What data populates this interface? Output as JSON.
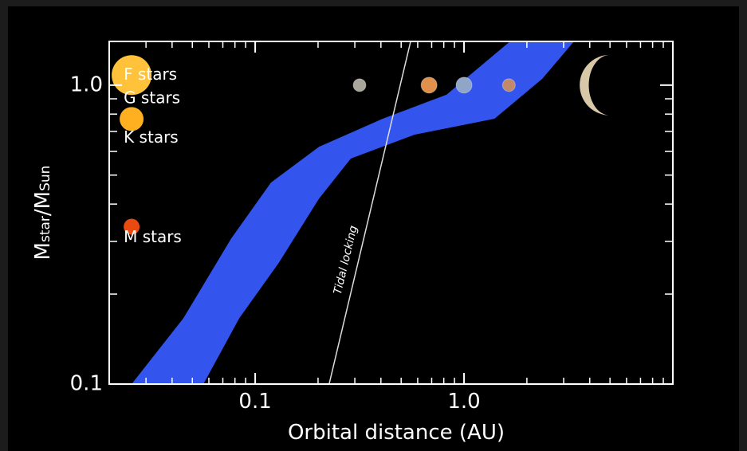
{
  "chart_data": {
    "type": "habitable-zone",
    "xlabel": "Orbital distance (AU)",
    "ylabel": [
      "M",
      "star",
      "/M",
      "Sun"
    ],
    "log_x": true,
    "log_y": true,
    "xlim": [
      0.02,
      10
    ],
    "ylim": [
      0.1,
      1.4
    ],
    "xticks": [
      0.1,
      {
        "value": 1,
        "label": "1.0"
      }
    ],
    "yticks": [
      0.1,
      {
        "value": 1,
        "label": "1.0"
      }
    ],
    "xminorticks": [
      0.03,
      0.04,
      0.05,
      0.06,
      0.07,
      0.08,
      0.09,
      0.2,
      0.3,
      0.4,
      0.5,
      0.6,
      0.7,
      0.8,
      0.9,
      2,
      3,
      4,
      5,
      6,
      7,
      8,
      9
    ],
    "yminorticks": [
      0.2,
      0.3,
      0.4,
      0.5,
      0.6,
      0.7,
      0.8,
      0.9
    ],
    "band": {
      "color": "#3355ee",
      "x_inner": [
        0.0256,
        0.0453,
        0.0768,
        0.119,
        0.202,
        0.408,
        0.824,
        1.66
      ],
      "y_inner": [
        0.1,
        0.166,
        0.307,
        0.472,
        0.622,
        0.772,
        0.929,
        1.4
      ],
      "x_outer": [
        0.0565,
        0.0839,
        0.13,
        0.202,
        0.287,
        0.58,
        1.4,
        2.37,
        3.36
      ],
      "y_outer": [
        0.1,
        0.166,
        0.255,
        0.417,
        0.568,
        0.683,
        0.772,
        1.05,
        1.4
      ]
    },
    "tidal_locking": {
      "label": "Tidal locking",
      "x": [
        0.226,
        0.555
      ],
      "y": [
        0.1,
        1.4
      ]
    },
    "stars": {
      "labels": [
        "F stars",
        "G stars",
        "K stars",
        "M stars"
      ],
      "x": 0.0256,
      "y": [
        1.08,
        0.9,
        0.77,
        0.336
      ],
      "colors": [
        "#ffc23a",
        null,
        "#ffb020",
        "#e84a10"
      ]
    },
    "planets": {
      "x": [
        0.316,
        0.68,
        1.0,
        1.64,
        5.0
      ],
      "y": 1,
      "colors": [
        "#aaa69c",
        "#e0904a",
        "#8fa6c8",
        "#c08a6a",
        "#d8c8a8"
      ]
    }
  }
}
